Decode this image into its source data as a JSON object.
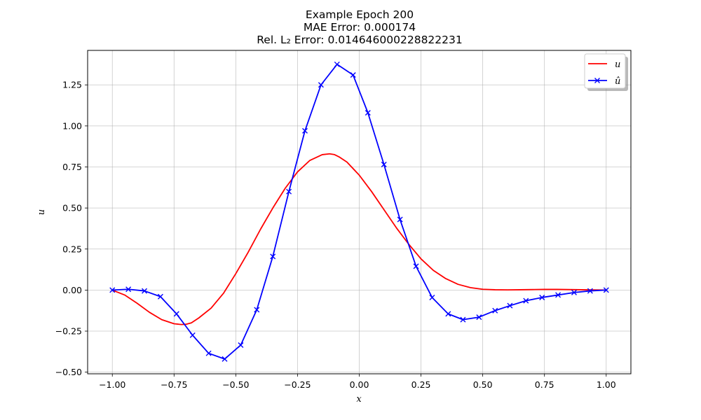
{
  "chart_data": {
    "type": "line",
    "title_lines": [
      "Example Epoch 200",
      "MAE Error: 0.000174",
      "Rel. L₂ Error: 0.014646000228822231"
    ],
    "xlabel": "x",
    "ylabel": "u",
    "xlim": [
      -1.1,
      1.1
    ],
    "ylim": [
      -0.51,
      1.46
    ],
    "x_ticks": [
      -1.0,
      -0.75,
      -0.5,
      -0.25,
      0.0,
      0.25,
      0.5,
      0.75,
      1.0
    ],
    "x_tick_labels": [
      "−1.00",
      "−0.75",
      "−0.50",
      "−0.25",
      "0.00",
      "0.25",
      "0.50",
      "0.75",
      "1.00"
    ],
    "y_ticks": [
      -0.5,
      -0.25,
      0.0,
      0.25,
      0.5,
      0.75,
      1.0,
      1.25
    ],
    "y_tick_labels": [
      "−0.50",
      "−0.25",
      "0.00",
      "0.25",
      "0.50",
      "0.75",
      "1.00",
      "1.25"
    ],
    "grid": true,
    "legend_position": "top-right",
    "series": [
      {
        "name": "u",
        "color": "#ff0000",
        "marker": "none",
        "x": [
          -1.0,
          -0.95,
          -0.9,
          -0.85,
          -0.8,
          -0.75,
          -0.72,
          -0.7,
          -0.68,
          -0.65,
          -0.6,
          -0.55,
          -0.5,
          -0.45,
          -0.4,
          -0.35,
          -0.3,
          -0.25,
          -0.2,
          -0.15,
          -0.12,
          -0.1,
          -0.08,
          -0.05,
          0.0,
          0.05,
          0.1,
          0.15,
          0.2,
          0.25,
          0.3,
          0.35,
          0.4,
          0.45,
          0.5,
          0.55,
          0.6,
          0.65,
          0.7,
          0.75,
          0.8,
          0.85,
          0.9,
          0.95,
          1.0
        ],
        "y": [
          0.0,
          -0.03,
          -0.08,
          -0.135,
          -0.18,
          -0.205,
          -0.21,
          -0.208,
          -0.2,
          -0.17,
          -0.11,
          -0.02,
          0.1,
          0.23,
          0.37,
          0.5,
          0.62,
          0.72,
          0.79,
          0.825,
          0.83,
          0.825,
          0.81,
          0.78,
          0.7,
          0.6,
          0.49,
          0.38,
          0.28,
          0.19,
          0.12,
          0.07,
          0.035,
          0.015,
          0.005,
          0.002,
          0.001,
          0.002,
          0.003,
          0.004,
          0.004,
          0.003,
          0.002,
          0.001,
          0.0
        ]
      },
      {
        "name": "û",
        "color": "#0000ff",
        "marker": "x",
        "x": [
          -1.0,
          -0.935,
          -0.87,
          -0.805,
          -0.74,
          -0.675,
          -0.61,
          -0.545,
          -0.48,
          -0.415,
          -0.35,
          -0.285,
          -0.22,
          -0.155,
          -0.09,
          -0.025,
          0.035,
          0.1,
          0.165,
          0.23,
          0.295,
          0.36,
          0.42,
          0.485,
          0.55,
          0.61,
          0.675,
          0.74,
          0.805,
          0.87,
          0.935,
          1.0
        ],
        "y": [
          0.0,
          0.005,
          -0.005,
          -0.04,
          -0.145,
          -0.275,
          -0.385,
          -0.42,
          -0.335,
          -0.12,
          0.205,
          0.6,
          0.97,
          1.25,
          1.375,
          1.31,
          1.08,
          0.765,
          0.43,
          0.145,
          -0.045,
          -0.145,
          -0.18,
          -0.165,
          -0.125,
          -0.095,
          -0.065,
          -0.045,
          -0.03,
          -0.015,
          -0.005,
          0.0
        ]
      }
    ]
  }
}
